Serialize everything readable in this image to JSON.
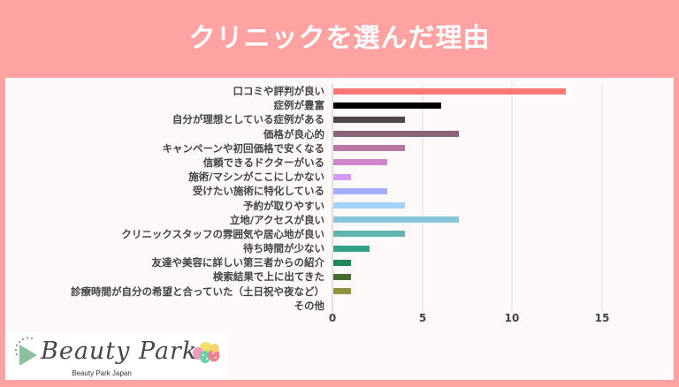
{
  "header": {
    "title": "クリニックを選んだ理由"
  },
  "chart_data": {
    "type": "bar",
    "orientation": "horizontal",
    "title": "クリニックを選んだ理由",
    "xlabel": "",
    "ylabel": "",
    "xlim": [
      0,
      15
    ],
    "xticks": [
      "0",
      "5",
      "10",
      "15"
    ],
    "grid": true,
    "legend": "none",
    "categories": [
      "口コミや評判が良い",
      "症例が豊富",
      "自分が理想としている症例がある",
      "価格が良心的",
      "キャンペーンや初回価格で安くなる",
      "信頼できるドクターがいる",
      "施術/マシンがここにしかない",
      "受けたい施術に特化している",
      "予約が取りやすい",
      "立地/アクセスが良い",
      "クリニックスタッフの雰囲気や居心地が良い",
      "待ち時間が少ない",
      "友達や美容に詳しい第三者からの紹介",
      "検索結果で上に出てきた",
      "診療時間が自分の希望と合っていた（土日祝や夜など）",
      "その他"
    ],
    "values": [
      13,
      6,
      4,
      7,
      4,
      3,
      1,
      3,
      4,
      7,
      4,
      2,
      1,
      1,
      1,
      0
    ],
    "colors": [
      "#ff7676",
      "#000000",
      "#4f4549",
      "#8c6478",
      "#b877a0",
      "#d084cc",
      "#d899f8",
      "#a3aefa",
      "#a2d3f9",
      "#89c5da",
      "#62b3b0",
      "#33a088",
      "#1f8858",
      "#466b2e",
      "#8f933e",
      "#cccccc"
    ]
  },
  "logo": {
    "name": "Beauty Park",
    "subtitle": "Beauty Park Japan"
  }
}
